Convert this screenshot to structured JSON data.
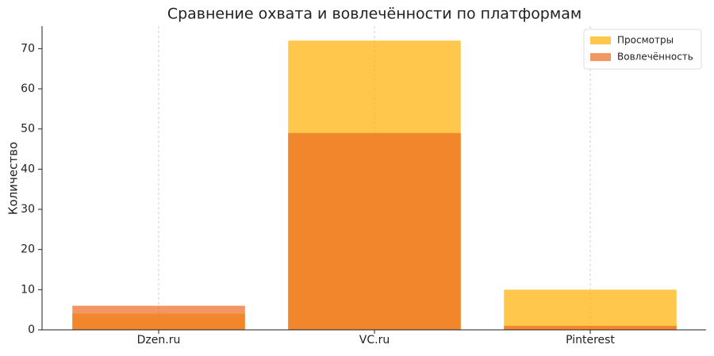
{
  "chart_data": {
    "type": "bar",
    "title": "Сравнение охвата и вовлечённости по платформам",
    "y_label": "Количество",
    "categories": [
      "Dzen.ru",
      "VC.ru",
      "Pinterest"
    ],
    "series": [
      {
        "name": "Просмотры",
        "color": "#ffb000",
        "values": [
          4,
          72,
          10
        ]
      },
      {
        "name": "Вовлечённость",
        "color": "#ed6a1f",
        "values": [
          6,
          49,
          1
        ]
      }
    ],
    "bar_opacity": 0.7,
    "ylim": [
      0,
      75.6
    ],
    "yticks": [
      0,
      10,
      20,
      30,
      40,
      50,
      60,
      70
    ],
    "grid": "x",
    "legend": "upper right"
  }
}
